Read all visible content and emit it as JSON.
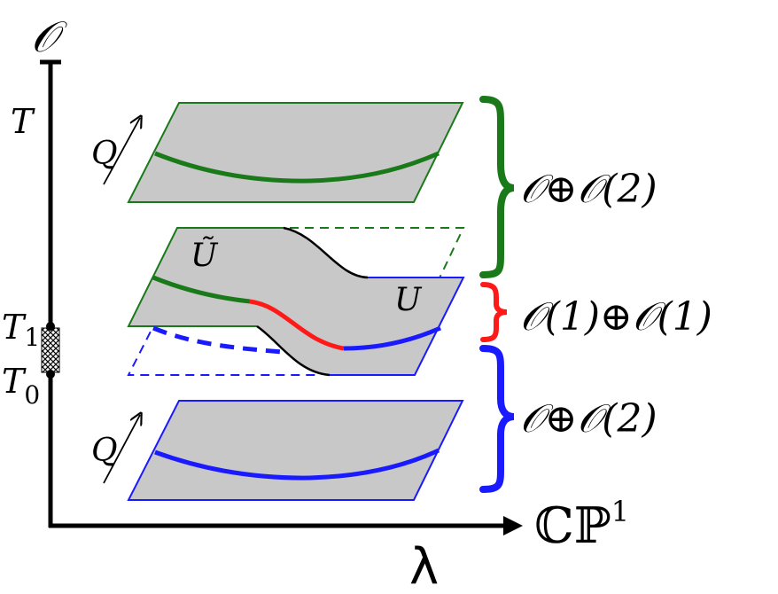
{
  "axes": {
    "vertical_label": "𝒪",
    "horizontal_label": "λ",
    "space_label": "ℂℙ",
    "space_superscript": "1",
    "tick_T": "T",
    "tick_T1": "T",
    "tick_T1_sub": "1",
    "tick_T0": "T",
    "tick_T0_sub": "0"
  },
  "planes": {
    "top_arrow_label": "Q",
    "bottom_arrow_label": "Q",
    "tilde_u_label": "Ũ",
    "u_label": "U"
  },
  "bundles": {
    "top": "𝒪⊕𝒪(2)",
    "middle": "𝒪(1)⊕𝒪(1)",
    "bottom": "𝒪⊕𝒪(2)"
  },
  "colors": {
    "green": "#1a7a1a",
    "blue": "#1a1aff",
    "red": "#ff1a1a",
    "plane_fill": "#c8c8c8",
    "axis": "#000000"
  }
}
